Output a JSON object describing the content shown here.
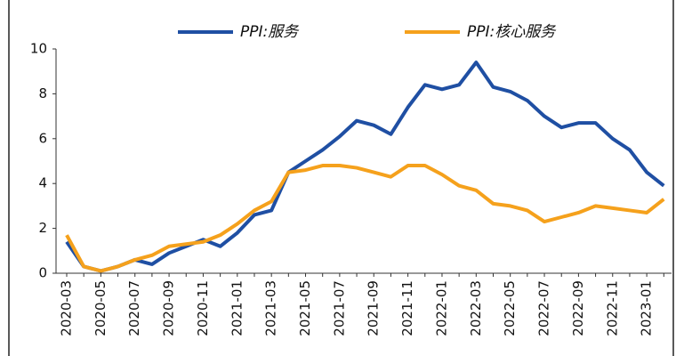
{
  "chart_data": {
    "type": "line",
    "categories": [
      "2020-03",
      null,
      "2020-05",
      null,
      "2020-07",
      null,
      "2020-09",
      null,
      "2020-11",
      null,
      "2021-01",
      null,
      "2021-03",
      null,
      "2021-05",
      null,
      "2021-07",
      null,
      "2021-09",
      null,
      "2021-11",
      null,
      "2022-01",
      null,
      "2022-03",
      null,
      "2022-05",
      null,
      "2022-07",
      null,
      "2022-09",
      null,
      "2022-11",
      null,
      "2023-01",
      null
    ],
    "series": [
      {
        "name": "PPI:服务",
        "color": "#1f4fa3",
        "values": [
          1.4,
          0.3,
          0.1,
          0.3,
          0.6,
          0.4,
          0.9,
          1.2,
          1.5,
          1.2,
          1.8,
          2.6,
          2.8,
          4.5,
          5.0,
          5.5,
          6.1,
          6.8,
          6.6,
          6.2,
          7.4,
          8.4,
          8.2,
          8.4,
          9.4,
          8.3,
          8.1,
          7.7,
          7.0,
          6.5,
          6.7,
          6.7,
          6.0,
          5.5,
          4.5,
          3.9
        ]
      },
      {
        "name": "PPI:核心服务",
        "color": "#f5a11c",
        "values": [
          1.7,
          0.3,
          0.1,
          0.3,
          0.6,
          0.8,
          1.2,
          1.3,
          1.4,
          1.7,
          2.2,
          2.8,
          3.2,
          4.5,
          4.6,
          4.8,
          4.8,
          4.7,
          4.5,
          4.3,
          4.8,
          4.8,
          4.4,
          3.9,
          3.7,
          3.1,
          3.0,
          2.8,
          2.3,
          2.5,
          2.7,
          3.0,
          2.9,
          2.8,
          2.7,
          3.3
        ]
      }
    ],
    "ylim": [
      0,
      10
    ],
    "yticks": [
      0,
      2,
      4,
      6,
      8,
      10
    ],
    "legend": "top",
    "grid": false
  }
}
